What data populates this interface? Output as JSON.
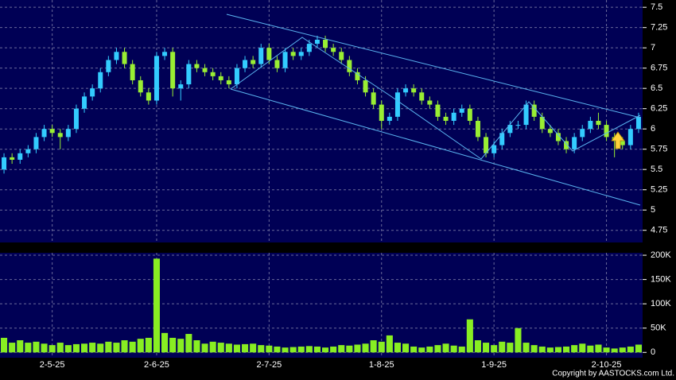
{
  "chart_data": [
    {
      "type": "candlestick",
      "open": [
        5.5,
        5.65,
        5.62,
        5.7,
        5.75,
        5.9,
        6.0,
        5.95,
        5.9,
        6.0,
        6.25,
        6.4,
        6.5,
        6.7,
        6.85,
        6.95,
        6.8,
        6.6,
        6.45,
        6.35,
        6.9,
        6.95,
        6.5,
        6.55,
        6.8,
        6.75,
        6.7,
        6.65,
        6.6,
        6.55,
        6.75,
        6.85,
        6.8,
        7.0,
        6.85,
        6.75,
        6.95,
        6.9,
        6.95,
        7.05,
        7.1,
        7.0,
        6.95,
        6.85,
        6.7,
        6.6,
        6.45,
        6.3,
        6.1,
        6.15,
        6.45,
        6.5,
        6.45,
        6.35,
        6.3,
        6.15,
        6.1,
        6.2,
        6.25,
        6.1,
        5.9,
        5.7,
        5.8,
        5.95,
        6.05,
        6.05,
        6.3,
        6.15,
        6.0,
        5.95,
        5.85,
        5.75,
        5.9,
        6.0,
        6.1,
        6.05,
        5.9,
        5.85,
        5.8,
        6.0
      ],
      "high": [
        5.7,
        5.7,
        5.75,
        5.8,
        5.95,
        6.05,
        6.05,
        6.0,
        6.05,
        6.3,
        6.45,
        6.55,
        6.75,
        6.9,
        7.0,
        7.0,
        6.85,
        6.65,
        6.5,
        6.95,
        7.0,
        7.0,
        6.6,
        6.85,
        6.85,
        6.8,
        6.75,
        6.7,
        6.65,
        6.8,
        6.9,
        6.9,
        7.05,
        7.05,
        6.9,
        7.0,
        7.0,
        7.0,
        7.1,
        7.15,
        7.15,
        7.05,
        7.0,
        6.9,
        6.75,
        6.65,
        6.5,
        6.35,
        6.2,
        6.5,
        6.55,
        6.55,
        6.5,
        6.4,
        6.35,
        6.2,
        6.25,
        6.3,
        6.3,
        6.15,
        5.95,
        5.85,
        6.0,
        6.1,
        6.1,
        6.35,
        6.35,
        6.2,
        6.05,
        6.0,
        5.9,
        5.95,
        6.05,
        6.15,
        6.2,
        6.1,
        5.95,
        5.9,
        6.05,
        6.2
      ],
      "low": [
        5.45,
        5.57,
        5.57,
        5.65,
        5.7,
        5.85,
        5.9,
        5.75,
        5.85,
        5.95,
        6.2,
        6.35,
        6.45,
        6.65,
        6.8,
        6.75,
        6.55,
        6.4,
        6.3,
        6.3,
        6.85,
        6.4,
        6.35,
        6.5,
        6.7,
        6.65,
        6.6,
        6.55,
        6.5,
        6.5,
        6.7,
        6.75,
        6.75,
        6.8,
        6.7,
        6.7,
        6.85,
        6.85,
        6.9,
        7.0,
        6.95,
        6.9,
        6.8,
        6.65,
        6.55,
        6.4,
        6.25,
        6.0,
        6.05,
        6.1,
        6.4,
        6.4,
        6.3,
        6.25,
        6.1,
        6.05,
        6.05,
        6.15,
        6.05,
        5.85,
        5.65,
        5.65,
        5.75,
        5.9,
        6.0,
        6.0,
        6.1,
        5.95,
        5.9,
        5.8,
        5.7,
        5.7,
        5.85,
        5.95,
        6.0,
        5.85,
        5.65,
        5.75,
        5.75,
        5.95
      ],
      "close": [
        5.65,
        5.62,
        5.7,
        5.75,
        5.9,
        6.0,
        5.95,
        5.9,
        6.0,
        6.25,
        6.4,
        6.5,
        6.7,
        6.85,
        6.95,
        6.8,
        6.6,
        6.45,
        6.35,
        6.9,
        6.95,
        6.5,
        6.55,
        6.8,
        6.75,
        6.7,
        6.65,
        6.6,
        6.55,
        6.75,
        6.85,
        6.8,
        7.0,
        6.85,
        6.75,
        6.95,
        6.9,
        6.95,
        7.05,
        7.1,
        7.0,
        6.95,
        6.85,
        6.7,
        6.6,
        6.45,
        6.3,
        6.1,
        6.15,
        6.45,
        6.5,
        6.45,
        6.35,
        6.3,
        6.15,
        6.1,
        6.2,
        6.25,
        6.1,
        5.9,
        5.7,
        5.8,
        5.95,
        6.05,
        6.05,
        6.3,
        6.15,
        6.0,
        5.95,
        5.85,
        5.75,
        5.9,
        6.0,
        6.1,
        6.05,
        5.9,
        5.85,
        5.8,
        6.0,
        6.15
      ],
      "up_color": "#33ccff",
      "down_color": "#99ee33",
      "ylim": [
        4.6,
        7.59
      ],
      "yticks": [
        4.75,
        5,
        5.25,
        5.5,
        5.75,
        6,
        6.25,
        6.5,
        6.75,
        7,
        7.25,
        7.5
      ],
      "grid": true
    },
    {
      "type": "bar",
      "categories": [
        null,
        null,
        null,
        null,
        null,
        null,
        "2-5-25",
        null,
        null,
        null,
        null,
        null,
        null,
        null,
        null,
        null,
        null,
        null,
        null,
        "2-6-25",
        null,
        null,
        null,
        null,
        null,
        null,
        null,
        null,
        null,
        null,
        null,
        null,
        null,
        "2-7-25",
        null,
        null,
        null,
        null,
        null,
        null,
        null,
        null,
        null,
        null,
        null,
        null,
        null,
        "1-8-25",
        null,
        null,
        null,
        null,
        null,
        null,
        null,
        null,
        null,
        null,
        null,
        null,
        null,
        "1-9-25",
        null,
        null,
        null,
        null,
        null,
        null,
        null,
        null,
        null,
        null,
        null,
        null,
        null,
        "2-10-25",
        null,
        null,
        null,
        null
      ],
      "values": [
        30000,
        20000,
        25000,
        20000,
        22000,
        18000,
        15000,
        20000,
        15000,
        17000,
        18000,
        20000,
        18000,
        22000,
        20000,
        25000,
        22000,
        28000,
        30000,
        193000,
        40000,
        30000,
        28000,
        38000,
        25000,
        18000,
        22000,
        20000,
        18000,
        16000,
        17000,
        18000,
        15000,
        14000,
        12000,
        10000,
        11000,
        12000,
        13000,
        12000,
        10000,
        12000,
        15000,
        14000,
        16000,
        18000,
        25000,
        22000,
        35000,
        20000,
        18000,
        12000,
        10000,
        12000,
        15000,
        18000,
        14000,
        12000,
        68000,
        25000,
        20000,
        15000,
        22000,
        20000,
        50000,
        20000,
        15000,
        12000,
        10000,
        11000,
        12000,
        15000,
        18000,
        14000,
        16000,
        10000,
        8000,
        10000,
        12000,
        16000
      ],
      "color": "#88ee22",
      "ylim": [
        -11000,
        205000
      ],
      "yticks": [
        {
          "value": 0,
          "label": "0"
        },
        {
          "value": 50000,
          "label": "50K"
        },
        {
          "value": 100000,
          "label": "100K"
        },
        {
          "value": 150000,
          "label": "150K"
        },
        {
          "value": 200000,
          "label": "200K"
        }
      ],
      "grid": true
    }
  ],
  "footer": "Copyright by AASTOCKS.com Ltd."
}
